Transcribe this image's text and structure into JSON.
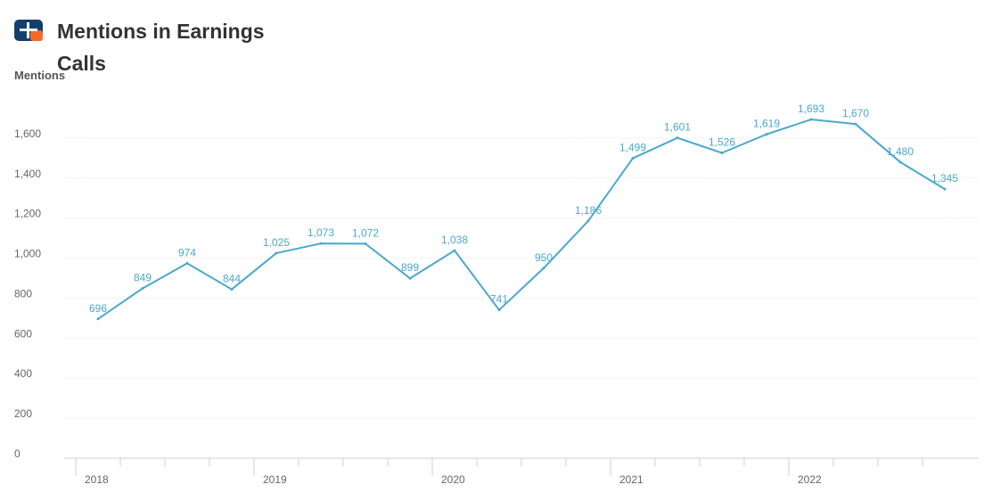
{
  "header": {
    "title": "Mentions in Earnings Calls",
    "logo_icon": "brand-logo-icon",
    "logo_colors": {
      "primary": "#14406b",
      "accent": "#f26b2d"
    }
  },
  "chart_data": {
    "type": "line",
    "title": "Mentions in Earnings Calls",
    "xlabel": "",
    "ylabel": "Mentions",
    "ylim": [
      0,
      1800
    ],
    "y_ticks": [
      0,
      200,
      400,
      600,
      800,
      1000,
      1200,
      1400,
      1600
    ],
    "y_tick_labels": [
      "0",
      "200",
      "400",
      "600",
      "800",
      "1,000",
      "1,200",
      "1,400",
      "1,600"
    ],
    "x_tick_labels": [
      "2018",
      "2019",
      "2020",
      "2021",
      "2022"
    ],
    "grid": true,
    "line_color": "#4aa8cf",
    "series": [
      {
        "values": [
          696,
          849,
          974,
          844,
          1025,
          1073,
          1072,
          899,
          1038,
          741,
          950,
          1186,
          1499,
          1601,
          1526,
          1619,
          1693,
          1670,
          1480,
          1345
        ],
        "labels": [
          "696",
          "849",
          "974",
          "844",
          "1,025",
          "1,073",
          "1,072",
          "899",
          "1,038",
          "741",
          "950",
          "1,186",
          "1,499",
          "1,601",
          "1,526",
          "1,619",
          "1,693",
          "1,670",
          "1,480",
          "1,345"
        ]
      }
    ]
  }
}
